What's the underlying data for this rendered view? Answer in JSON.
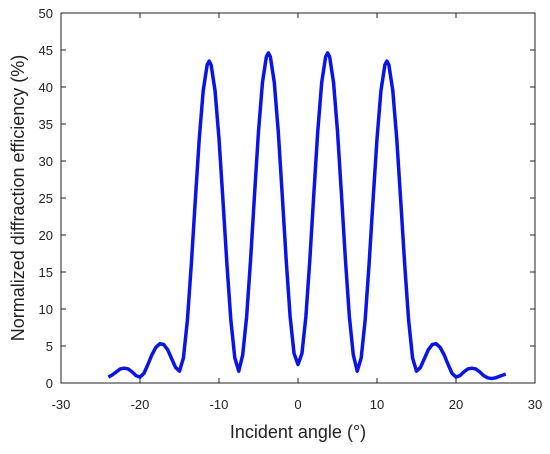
{
  "chart_data": {
    "type": "line",
    "xlabel": "Incident angle (°)",
    "ylabel": "Normalized diffraction efficiency (%)",
    "xlim": [
      -30,
      30
    ],
    "xticks": [
      -30,
      -20,
      -10,
      0,
      10,
      20,
      30
    ],
    "ylim": [
      0,
      50
    ],
    "yticks": [
      0,
      5,
      10,
      15,
      20,
      25,
      30,
      35,
      40,
      45,
      50
    ],
    "series": [
      {
        "color": "#0a14e6",
        "x": [
          -24,
          -23.5,
          -23,
          -22.5,
          -22,
          -21.5,
          -21,
          -20.5,
          -20,
          -19.5,
          -19,
          -18.5,
          -18,
          -17.5,
          -17,
          -16.5,
          -16,
          -15.5,
          -15,
          -14.5,
          -14,
          -13.5,
          -13,
          -12.5,
          -12,
          -11.5,
          -11.25,
          -11,
          -10.5,
          -10,
          -9.5,
          -9,
          -8.5,
          -8,
          -7.5,
          -7,
          -6.5,
          -6,
          -5.5,
          -5,
          -4.5,
          -4,
          -3.75,
          -3.5,
          -3,
          -2.5,
          -2,
          -1.5,
          -1,
          -0.5,
          0,
          0.5,
          1,
          1.5,
          2,
          2.5,
          3,
          3.5,
          3.75,
          4,
          4.5,
          5,
          5.5,
          6,
          6.5,
          7,
          7.5,
          8,
          8.5,
          9,
          9.5,
          10,
          10.5,
          11,
          11.25,
          11.5,
          12,
          12.5,
          13,
          13.5,
          14,
          14.5,
          15,
          15.5,
          16,
          16.5,
          17,
          17.5,
          18,
          18.5,
          19,
          19.5,
          20,
          20.5,
          21,
          21.5,
          22,
          22.5,
          23,
          23.5,
          24,
          24.5,
          25,
          25.5,
          26,
          26.3
        ],
        "values": [
          0.8,
          1.1,
          1.5,
          1.9,
          2.0,
          1.9,
          1.5,
          1.0,
          0.8,
          1.3,
          2.5,
          3.8,
          4.8,
          5.3,
          5.2,
          4.5,
          3.3,
          2.1,
          1.6,
          3.4,
          8.5,
          16.1,
          24.7,
          33.0,
          39.5,
          43.0,
          43.5,
          43.0,
          39.5,
          33.0,
          24.7,
          16.1,
          8.5,
          3.4,
          1.6,
          3.8,
          9.0,
          16.7,
          25.5,
          34.0,
          40.6,
          44.1,
          44.6,
          44.1,
          40.6,
          34.0,
          25.5,
          16.7,
          9.0,
          4.0,
          2.5,
          4.0,
          9.0,
          16.7,
          25.5,
          34.0,
          40.6,
          44.1,
          44.6,
          44.1,
          40.6,
          34.0,
          25.5,
          16.7,
          9.0,
          3.8,
          1.6,
          3.4,
          8.5,
          16.1,
          24.7,
          33.0,
          39.5,
          43.0,
          43.5,
          43.0,
          39.5,
          33.0,
          24.7,
          16.1,
          8.5,
          3.4,
          1.6,
          2.1,
          3.3,
          4.5,
          5.2,
          5.3,
          4.8,
          3.8,
          2.5,
          1.3,
          0.8,
          1.0,
          1.5,
          1.9,
          2.0,
          1.9,
          1.5,
          1.0,
          0.7,
          0.6,
          0.7,
          0.9,
          1.1,
          1.2
        ]
      }
    ]
  }
}
